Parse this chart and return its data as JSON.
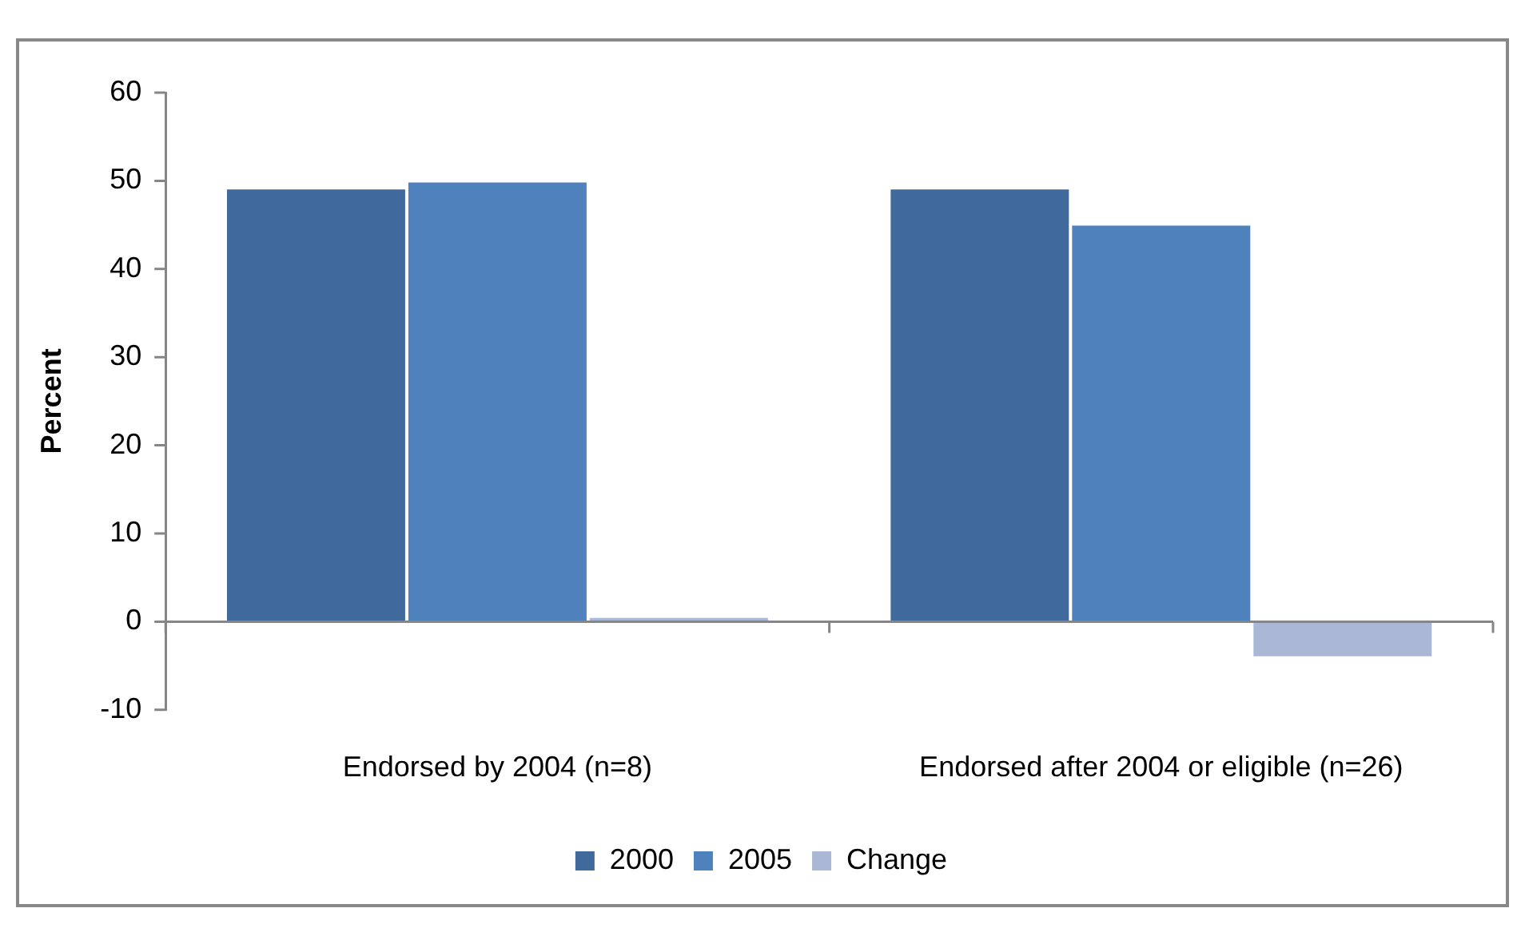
{
  "chart_data": {
    "type": "bar",
    "ylabel": "Percent",
    "categories": [
      "Endorsed by 2004 (n=8)",
      "Endorsed after 2004 or eligible (n=26)"
    ],
    "series": [
      {
        "name": "2000",
        "color": "#3f6a9b",
        "values": [
          49.2,
          49.2
        ]
      },
      {
        "name": "2005",
        "color": "#4f81bd",
        "values": [
          50.0,
          45.1
        ]
      },
      {
        "name": "Change",
        "color": "#aab8d6",
        "values": [
          0.6,
          -4.1
        ]
      }
    ],
    "ylim": [
      -10,
      60
    ],
    "yticks": [
      -10,
      0,
      10,
      20,
      30,
      40,
      50,
      60
    ],
    "legend": "bottom"
  }
}
